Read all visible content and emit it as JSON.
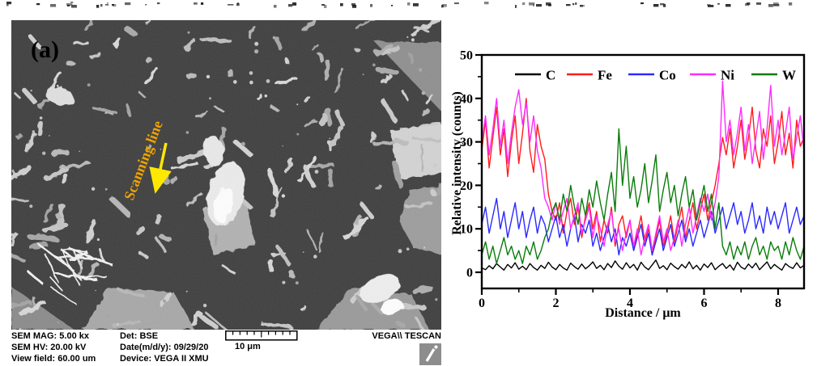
{
  "figure": {
    "panel_label": "(a)",
    "scan_annotation": "Scanning line"
  },
  "sem_info": {
    "left_column": [
      "SEM MAG: 5.00 kx",
      "SEM HV: 20.00 kV",
      "View field: 60.00 um"
    ],
    "middle_column": [
      "Det: BSE",
      "Date(m/d/y): 09/29/20",
      "Device: VEGA II XMU"
    ],
    "scale_label": "10 μm",
    "vendor": "VEGA\\\\ TESCAN"
  },
  "chart_data": {
    "type": "line",
    "title": "",
    "xlabel": "Distance / μm",
    "ylabel": "Relative intensity (counts)",
    "xlim": [
      0,
      8.7
    ],
    "ylim": [
      0,
      50
    ],
    "xticks": [
      0,
      2,
      4,
      6,
      8
    ],
    "xminor": [
      1,
      3,
      5,
      7
    ],
    "yticks": [
      0,
      10,
      20,
      30,
      40,
      50
    ],
    "yminor": [
      5,
      15,
      25,
      35,
      45
    ],
    "grid": false,
    "legend_position": "top-inside",
    "x_step": 0.1,
    "series": [
      {
        "name": "C",
        "color": "#000000",
        "values": [
          1.0,
          0.6,
          1.5,
          0.8,
          2.0,
          1.2,
          0.5,
          1.8,
          1.0,
          2.2,
          0.7,
          1.4,
          0.6,
          2.0,
          1.1,
          0.5,
          1.6,
          0.9,
          2.3,
          1.2,
          0.6,
          1.8,
          1.0,
          0.5,
          2.1,
          1.3,
          0.7,
          1.9,
          0.8,
          1.5,
          2.4,
          0.9,
          1.6,
          0.6,
          2.0,
          1.1,
          2.6,
          1.4,
          0.7,
          2.2,
          1.0,
          1.8,
          0.5,
          2.3,
          1.2,
          0.6,
          1.7,
          2.8,
          0.9,
          1.5,
          0.6,
          2.1,
          1.3,
          0.7,
          1.8,
          1.0,
          2.4,
          0.8,
          1.6,
          0.5,
          1.9,
          1.1,
          2.2,
          0.6,
          1.4,
          2.0,
          0.9,
          1.7,
          0.5,
          2.3,
          1.2,
          0.7,
          1.9,
          1.0,
          2.1,
          0.6,
          1.5,
          2.4,
          0.8,
          1.8,
          1.1,
          0.5,
          2.0,
          1.3,
          0.9,
          2.2,
          1.0,
          1.6
        ]
      },
      {
        "name": "Fe",
        "color": "#ff1c1c",
        "values": [
          28,
          35,
          24,
          31,
          38,
          27,
          33,
          22,
          30,
          36,
          25,
          32,
          40,
          28,
          23,
          34,
          29,
          26,
          18,
          14,
          12,
          16,
          9,
          14,
          17,
          11,
          15,
          8,
          13,
          16,
          10,
          14,
          7,
          12,
          9,
          15,
          6,
          11,
          13,
          8,
          12,
          5,
          9,
          13,
          7,
          10,
          4,
          8,
          12,
          6,
          9,
          13,
          7,
          11,
          15,
          8,
          12,
          16,
          10,
          14,
          18,
          12,
          16,
          20,
          25,
          31,
          27,
          33,
          24,
          29,
          35,
          26,
          31,
          38,
          28,
          24,
          33,
          29,
          36,
          25,
          30,
          37,
          27,
          32,
          24,
          35,
          29,
          31
        ]
      },
      {
        "name": "Co",
        "color": "#2a2aff",
        "values": [
          11,
          15,
          9,
          13,
          17,
          10,
          14,
          8,
          12,
          16,
          10,
          14,
          8,
          12,
          15,
          9,
          13,
          11,
          7,
          10,
          13,
          8,
          11,
          6,
          10,
          13,
          7,
          11,
          9,
          12,
          6,
          9,
          5,
          8,
          11,
          7,
          10,
          4,
          8,
          6,
          9,
          5,
          8,
          11,
          6,
          9,
          4,
          7,
          10,
          5,
          8,
          11,
          6,
          9,
          12,
          7,
          10,
          6,
          9,
          12,
          8,
          11,
          14,
          9,
          12,
          15,
          10,
          13,
          16,
          11,
          14,
          9,
          12,
          16,
          10,
          13,
          9,
          15,
          11,
          14,
          10,
          13,
          16,
          9,
          12,
          15,
          11,
          13
        ]
      },
      {
        "name": "Ni",
        "color": "#ff2bff",
        "values": [
          30,
          36,
          27,
          33,
          40,
          29,
          35,
          25,
          32,
          38,
          42,
          34,
          39,
          30,
          36,
          28,
          24,
          17,
          15,
          12,
          16,
          11,
          14,
          17,
          10,
          13,
          16,
          9,
          12,
          15,
          8,
          13,
          10,
          6,
          11,
          14,
          7,
          10,
          5,
          9,
          12,
          6,
          10,
          4,
          8,
          11,
          5,
          9,
          13,
          7,
          10,
          5,
          8,
          12,
          6,
          11,
          15,
          9,
          13,
          17,
          14,
          18,
          12,
          16,
          22,
          44,
          30,
          35,
          27,
          32,
          38,
          28,
          34,
          25,
          31,
          37,
          26,
          33,
          43,
          29,
          35,
          27,
          32,
          38,
          26,
          31,
          36,
          28
        ]
      },
      {
        "name": "W",
        "color": "#0a7d0a",
        "values": [
          4,
          7,
          3,
          6,
          2,
          5,
          8,
          4,
          6,
          3,
          5,
          2,
          6,
          4,
          7,
          3,
          5,
          8,
          10,
          14,
          16,
          12,
          18,
          14,
          20,
          15,
          11,
          17,
          13,
          19,
          15,
          21,
          16,
          12,
          18,
          23,
          14,
          33,
          20,
          29,
          17,
          22,
          15,
          19,
          25,
          16,
          21,
          27,
          14,
          19,
          23,
          16,
          20,
          13,
          18,
          22,
          15,
          19,
          12,
          16,
          20,
          14,
          18,
          10,
          16,
          6,
          4,
          7,
          3,
          6,
          4,
          7,
          3,
          6,
          8,
          4,
          6,
          3,
          7,
          5,
          6,
          3,
          7,
          4,
          8,
          5,
          3,
          6
        ]
      }
    ]
  }
}
